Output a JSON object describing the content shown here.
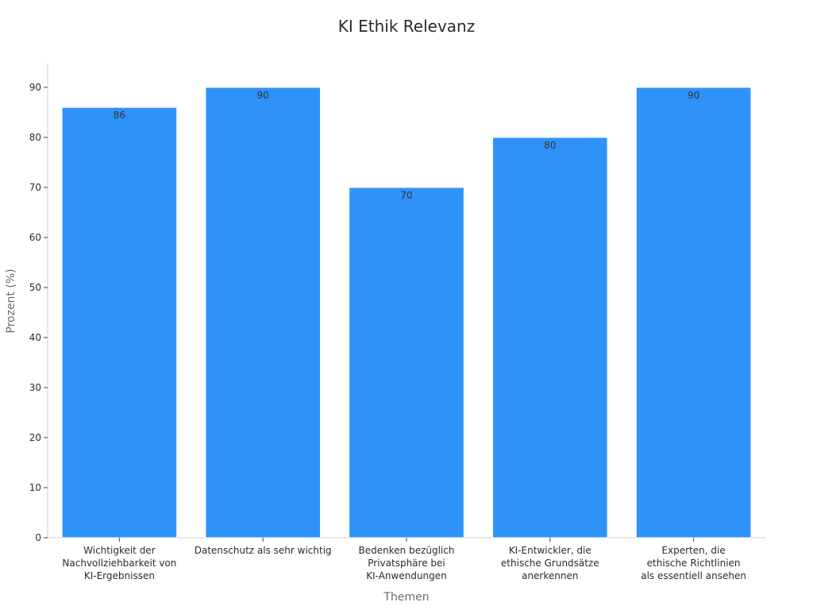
{
  "chart_data": {
    "type": "bar",
    "title": "KI Ethik Relevanz",
    "xlabel": "Themen",
    "ylabel": "Prozent (%)",
    "categories": [
      [
        "Wichtigkeit der",
        "Nachvollziehbarkeit von",
        "KI-Ergebnissen"
      ],
      [
        "Datenschutz als sehr wichtig"
      ],
      [
        "Bedenken bezüglich",
        "Privatsphäre bei",
        "KI-Anwendungen"
      ],
      [
        "KI-Entwickler, die",
        "ethische Grundsätze",
        "anerkennen"
      ],
      [
        "Experten, die",
        "ethische Richtlinien",
        "als essentiell ansehen"
      ]
    ],
    "values": [
      86,
      90,
      70,
      80,
      90
    ],
    "data_labels": [
      "86",
      "90",
      "70",
      "80",
      "90"
    ],
    "ylim": [
      0,
      90
    ],
    "yticks": [
      "0",
      "10",
      "20",
      "30",
      "40",
      "50",
      "60",
      "70",
      "80",
      "90"
    ],
    "grid": false,
    "legend": "none",
    "colors": {
      "bar": "#2f92f8",
      "text": "#2b2b2b",
      "axis_title": "#6b6b6b"
    }
  }
}
